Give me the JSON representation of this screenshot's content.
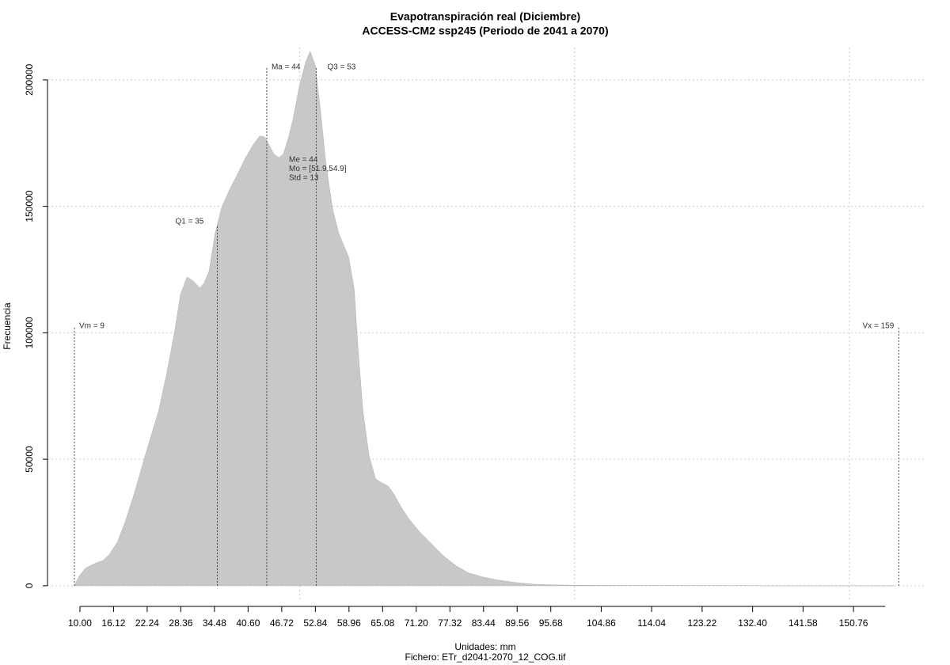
{
  "chart_data": {
    "type": "area",
    "title": "Evapotranspiración real (Diciembre)",
    "subtitle": "ACCESS-CM2 ssp245 (Periodo de 2041 a 2070)",
    "xlabel": "Unidades: mm",
    "caption": "Fichero: ETr_d2041-2070_12_COG.tif",
    "ylabel": "Frecuencia",
    "color": "#c8c8c8",
    "grid": true,
    "x": [
      9.0,
      9.86,
      11.0,
      12.7,
      14.2,
      15.3,
      16.8,
      18.2,
      19.95,
      22.1,
      24.3,
      25.7,
      27.2,
      28.3,
      29.5,
      30.6,
      31.8,
      32.6,
      33.5,
      34.6,
      35.8,
      37.2,
      38.7,
      40.1,
      41.6,
      42.7,
      43.6,
      44.4,
      45.3,
      46.2,
      47.0,
      47.9,
      48.8,
      49.9,
      51.1,
      51.9,
      52.8,
      53.7,
      54.8,
      56.0,
      57.1,
      58.0,
      58.9,
      59.9,
      60.6,
      61.5,
      62.6,
      63.8,
      64.9,
      66.1,
      67.2,
      68.4,
      69.8,
      71.8,
      74.1,
      76.1,
      78.5,
      80.8,
      83.4,
      86.2,
      89.1,
      92.7,
      96.3,
      103.5,
      110.7,
      125.1,
      139.5,
      158.3
    ],
    "values": [
      0,
      3800,
      6900,
      8800,
      10000,
      12200,
      17200,
      25000,
      36900,
      53200,
      68900,
      82900,
      100200,
      115200,
      122100,
      120500,
      117700,
      119600,
      124300,
      139300,
      149600,
      156500,
      162800,
      169000,
      174600,
      177800,
      177500,
      174300,
      170600,
      169300,
      170600,
      176800,
      184700,
      197200,
      207200,
      211300,
      205900,
      189400,
      165900,
      148700,
      139300,
      134600,
      129900,
      117400,
      93900,
      68900,
      51600,
      42300,
      40700,
      39400,
      36000,
      31300,
      26600,
      21300,
      16300,
      11900,
      7800,
      5000,
      3400,
      2200,
      1300,
      600,
      300,
      160,
      100,
      50,
      20,
      0
    ],
    "xlim": [
      4.1,
      164.0
    ],
    "ylim": [
      -6300,
      212800
    ],
    "xticks": [
      {
        "value": 10,
        "label": "10.00"
      },
      16.12,
      22.24,
      28.36,
      34.48,
      {
        "value": 40.6,
        "label": "40.60"
      },
      46.72,
      52.84,
      58.96,
      65.08,
      {
        "value": 71.2,
        "label": "71.20"
      },
      77.32,
      83.44,
      89.56,
      95.68,
      104.86,
      114.04,
      123.22,
      {
        "value": 132.4,
        "label": "132.40"
      },
      141.58,
      150.76
    ],
    "xgrid": [
      50,
      100,
      150
    ],
    "yticks": [
      0,
      50000,
      100000,
      150000,
      200000
    ],
    "annotations": [
      {
        "x": 9,
        "label": "Vm = 9"
      },
      {
        "x": 35,
        "label": "Q1 = 35"
      },
      {
        "x": 44,
        "label": "Ma = 44"
      },
      {
        "x": 53,
        "label": "Q3 = 53"
      },
      {
        "x": 159,
        "label": "Vx = 159"
      }
    ],
    "stats": [
      "Me = 44",
      "Mo = [51.9,54.9]",
      "Std = 13"
    ]
  }
}
